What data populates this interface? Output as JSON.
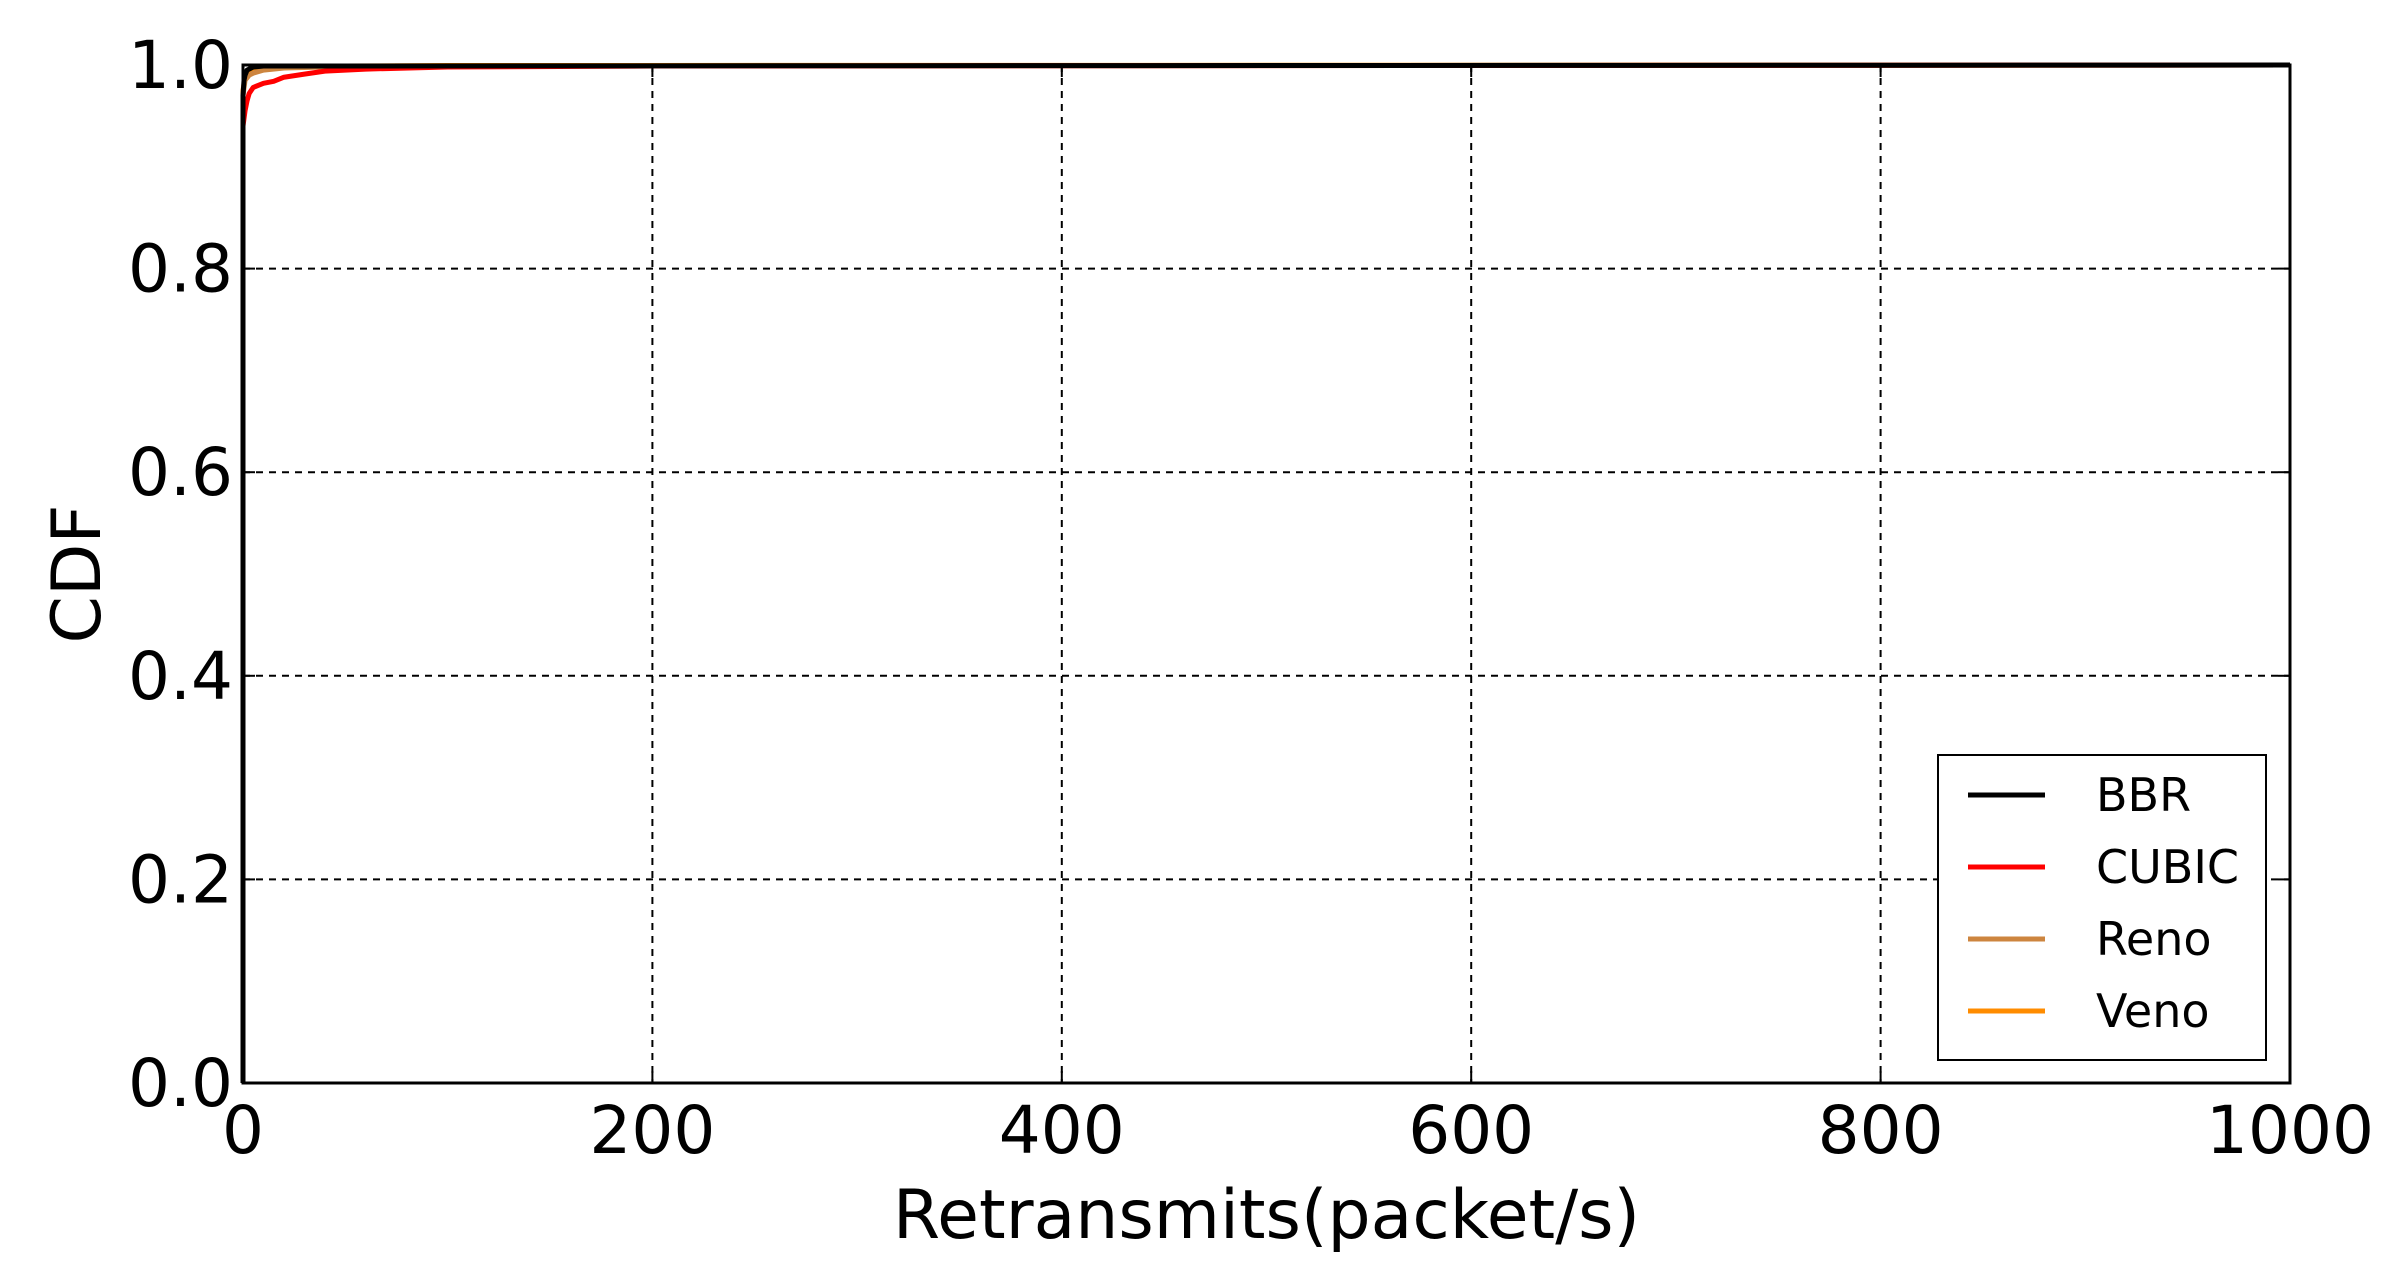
{
  "chart_data": {
    "type": "line",
    "title": "",
    "xlabel": "Retransmits(packet/s)",
    "ylabel": "CDF",
    "xlim": [
      0,
      1000
    ],
    "ylim": [
      0.0,
      1.0
    ],
    "xticks": [
      0,
      200,
      400,
      600,
      800,
      1000
    ],
    "xtick_labels": [
      "0",
      "200",
      "400",
      "600",
      "800",
      "1000"
    ],
    "yticks": [
      0.0,
      0.2,
      0.4,
      0.6,
      0.8,
      1.0
    ],
    "ytick_labels": [
      "0.0",
      "0.2",
      "0.4",
      "0.6",
      "0.8",
      "1.0"
    ],
    "grid": true,
    "legend_position": "lower-right",
    "series": [
      {
        "name": "BBR",
        "color": "#000000",
        "x": [
          0,
          0,
          0.5,
          1,
          2,
          5,
          10,
          1000
        ],
        "y": [
          0.0,
          0.97,
          0.985,
          0.99,
          0.995,
          0.998,
          0.999,
          1.0
        ]
      },
      {
        "name": "CUBIC",
        "color": "#ff0000",
        "x": [
          0,
          0,
          1,
          2,
          3,
          5,
          10,
          15,
          20,
          30,
          40,
          60,
          100,
          200,
          1000
        ],
        "y": [
          0.0,
          0.94,
          0.955,
          0.965,
          0.972,
          0.978,
          0.982,
          0.984,
          0.988,
          0.991,
          0.994,
          0.996,
          0.998,
          0.999,
          1.0
        ]
      },
      {
        "name": "Reno",
        "color": "#cd853f",
        "x": [
          0,
          0,
          1,
          3,
          5,
          10,
          20,
          40,
          100,
          1000
        ],
        "y": [
          0.0,
          0.97,
          0.985,
          0.99,
          0.992,
          0.995,
          0.997,
          0.998,
          0.999,
          1.0
        ]
      },
      {
        "name": "Veno",
        "color": "#ff8c00",
        "x": [
          0,
          0,
          1,
          3,
          5,
          10,
          20,
          50,
          100,
          1000
        ],
        "y": [
          0.0,
          0.975,
          0.988,
          0.992,
          0.994,
          0.996,
          0.998,
          0.999,
          0.9995,
          1.0
        ]
      }
    ]
  }
}
